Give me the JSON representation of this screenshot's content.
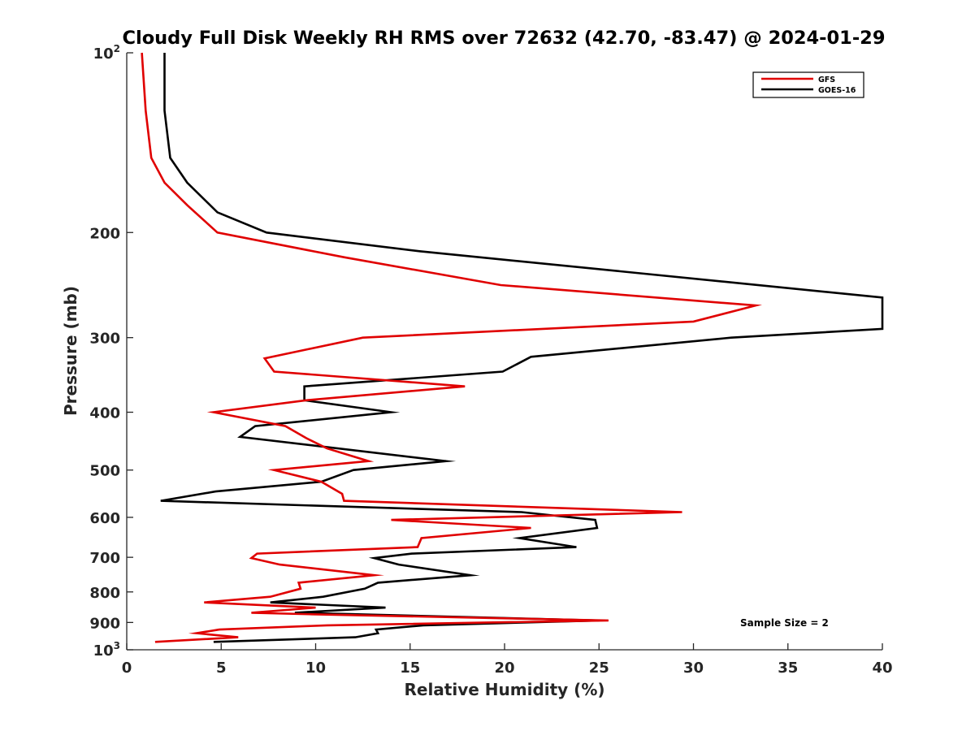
{
  "chart_data": {
    "type": "line",
    "title": "Cloudy Full Disk Weekly RH RMS over 72632 (42.70, -83.47) @ 2024-01-29",
    "xlabel": "Relative Humidity (%)",
    "ylabel": "Pressure (mb)",
    "xlim": [
      0,
      40
    ],
    "ylim": [
      1000,
      100
    ],
    "yscale": "log",
    "y_reversed": true,
    "xticks": [
      0,
      5,
      10,
      15,
      20,
      25,
      30,
      35,
      40
    ],
    "xtick_labels": [
      "0",
      "5",
      "10",
      "15",
      "20",
      "25",
      "30",
      "35",
      "40"
    ],
    "yticks": [
      100,
      200,
      300,
      400,
      500,
      600,
      700,
      800,
      900,
      1000
    ],
    "ytick_labels": [
      {
        "base": "10",
        "sup": "2"
      },
      {
        "base": "200",
        "sup": ""
      },
      {
        "base": "300",
        "sup": ""
      },
      {
        "base": "400",
        "sup": ""
      },
      {
        "base": "500",
        "sup": ""
      },
      {
        "base": "600",
        "sup": ""
      },
      {
        "base": "700",
        "sup": ""
      },
      {
        "base": "800",
        "sup": ""
      },
      {
        "base": "900",
        "sup": ""
      },
      {
        "base": "10",
        "sup": "3"
      }
    ],
    "grid": false,
    "legend_position": "top-right",
    "annotation": "Sample Size = 2",
    "series": [
      {
        "name": "GFS",
        "color": "#e00000",
        "points": [
          [
            0.8,
            100
          ],
          [
            1.0,
            125
          ],
          [
            1.3,
            150
          ],
          [
            2.0,
            165
          ],
          [
            3.2,
            180
          ],
          [
            4.8,
            200
          ],
          [
            11.5,
            220
          ],
          [
            19.8,
            245
          ],
          [
            33.3,
            265
          ],
          [
            30.0,
            282
          ],
          [
            12.5,
            300
          ],
          [
            7.3,
            325
          ],
          [
            7.8,
            342
          ],
          [
            17.9,
            362
          ],
          [
            9.5,
            382
          ],
          [
            4.6,
            400
          ],
          [
            8.4,
            422
          ],
          [
            9.5,
            442
          ],
          [
            10.6,
            460
          ],
          [
            12.8,
            483
          ],
          [
            7.8,
            500
          ],
          [
            10.3,
            523
          ],
          [
            11.4,
            548
          ],
          [
            11.5,
            563
          ],
          [
            29.4,
            588
          ],
          [
            14.0,
            606
          ],
          [
            21.4,
            625
          ],
          [
            15.6,
            650
          ],
          [
            15.4,
            673
          ],
          [
            6.9,
            690
          ],
          [
            6.6,
            702
          ],
          [
            8.1,
            720
          ],
          [
            13.1,
            750
          ],
          [
            9.1,
            772
          ],
          [
            9.2,
            790
          ],
          [
            7.6,
            815
          ],
          [
            4.1,
            833
          ],
          [
            10.0,
            850
          ],
          [
            6.6,
            867
          ],
          [
            9.8,
            872
          ],
          [
            25.5,
            893
          ],
          [
            10.6,
            910
          ],
          [
            4.9,
            925
          ],
          [
            3.7,
            938
          ],
          [
            5.9,
            953
          ],
          [
            1.5,
            970
          ]
        ]
      },
      {
        "name": "GOES-16",
        "color": "#000000",
        "points": [
          [
            2.0,
            100
          ],
          [
            2.0,
            125
          ],
          [
            2.3,
            150
          ],
          [
            3.2,
            165
          ],
          [
            4.8,
            185
          ],
          [
            7.4,
            200
          ],
          [
            15.5,
            215
          ],
          [
            40.0,
            257
          ],
          [
            40.0,
            290
          ],
          [
            32.0,
            300
          ],
          [
            21.4,
            323
          ],
          [
            19.9,
            342
          ],
          [
            9.4,
            362
          ],
          [
            9.4,
            382
          ],
          [
            14.0,
            400
          ],
          [
            6.8,
            422
          ],
          [
            6.0,
            440
          ],
          [
            16.9,
            483
          ],
          [
            12.0,
            500
          ],
          [
            10.3,
            523
          ],
          [
            4.7,
            543
          ],
          [
            1.8,
            563
          ],
          [
            20.9,
            588
          ],
          [
            24.8,
            606
          ],
          [
            24.9,
            625
          ],
          [
            20.8,
            650
          ],
          [
            23.8,
            673
          ],
          [
            15.1,
            690
          ],
          [
            13.1,
            702
          ],
          [
            14.4,
            720
          ],
          [
            18.2,
            750
          ],
          [
            13.3,
            772
          ],
          [
            12.6,
            790
          ],
          [
            10.4,
            815
          ],
          [
            7.6,
            833
          ],
          [
            13.7,
            850
          ],
          [
            8.9,
            867
          ],
          [
            25.0,
            893
          ],
          [
            15.7,
            910
          ],
          [
            13.2,
            925
          ],
          [
            13.3,
            938
          ],
          [
            12.1,
            953
          ],
          [
            4.6,
            970
          ]
        ]
      }
    ]
  }
}
